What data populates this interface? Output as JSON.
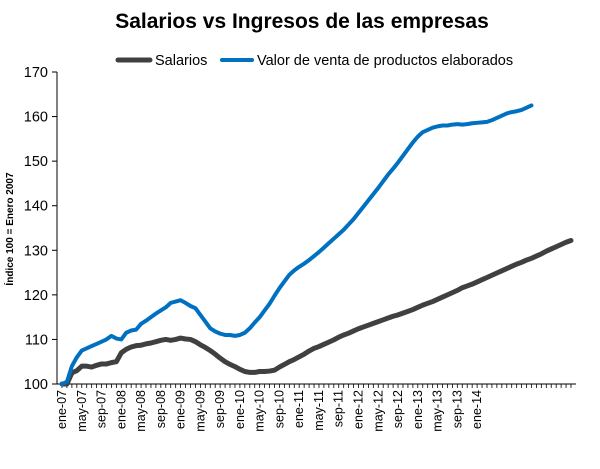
{
  "chart_data": {
    "type": "line",
    "title": "Salarios vs Ingresos de las empresas",
    "ylabel": "Índice 100  = Enero 2007",
    "xlabel": "",
    "ylim": [
      100,
      170
    ],
    "yticks": [
      100,
      110,
      120,
      130,
      140,
      150,
      160,
      170
    ],
    "grid": false,
    "legend_position": "top",
    "xtick_labels": [
      "ene-07",
      "may-07",
      "sep-07",
      "ene-08",
      "may-08",
      "sep-08",
      "ene-09",
      "may-09",
      "sep-09",
      "ene-10",
      "may-10",
      "sep-10",
      "ene-11",
      "may-11",
      "sep-11",
      "ene-12",
      "may-12",
      "sep-12",
      "ene-13",
      "may-13",
      "sep-13",
      "ene-14"
    ],
    "xtick_step_months": 4,
    "series": [
      {
        "name": "Salarios",
        "color": "#404040",
        "values": [
          100,
          100,
          102.5,
          103,
          104,
          104,
          103.8,
          104.2,
          104.5,
          104.5,
          104.8,
          105,
          107,
          107.8,
          108.3,
          108.6,
          108.7,
          109,
          109.2,
          109.5,
          109.8,
          110,
          109.8,
          110,
          110.3,
          110.1,
          110,
          109.5,
          108.8,
          108.2,
          107.5,
          106.7,
          105.8,
          105,
          104.4,
          103.9,
          103.3,
          102.8,
          102.6,
          102.6,
          102.8,
          102.8,
          102.9,
          103.1,
          103.8,
          104.4,
          105,
          105.5,
          106.1,
          106.7,
          107.4,
          108,
          108.4,
          108.9,
          109.4,
          109.9,
          110.5,
          111,
          111.4,
          111.9,
          112.4,
          112.8,
          113.2,
          113.6,
          114,
          114.4,
          114.8,
          115.2,
          115.5,
          115.9,
          116.3,
          116.7,
          117.2,
          117.7,
          118.1,
          118.5,
          119,
          119.5,
          120,
          120.5,
          121,
          121.6,
          122,
          122.4,
          122.9,
          123.4,
          123.9,
          124.4,
          124.9,
          125.4,
          125.9,
          126.4,
          126.9,
          127.3,
          127.8,
          128.2,
          128.7,
          129.2,
          129.8,
          130.3,
          130.8,
          131.3,
          131.8,
          132.2
        ]
      },
      {
        "name": "Valor de venta de productos elaborados",
        "color": "#0070c0",
        "values": [
          100,
          100.5,
          104,
          106,
          107.5,
          108,
          108.5,
          109,
          109.5,
          110,
          110.8,
          110.2,
          110,
          111.5,
          112,
          112.2,
          113.5,
          114.2,
          115,
          115.8,
          116.5,
          117.2,
          118.2,
          118.5,
          118.8,
          118.2,
          117.5,
          117,
          115.5,
          114,
          112.5,
          111.8,
          111.3,
          111,
          111,
          110.8,
          111,
          111.5,
          112.5,
          113.8,
          115,
          116.5,
          118,
          119.8,
          121.5,
          123,
          124.5,
          125.5,
          126.3,
          127,
          127.8,
          128.7,
          129.6,
          130.6,
          131.6,
          132.6,
          133.6,
          134.6,
          135.8,
          137,
          138.4,
          139.8,
          141.2,
          142.6,
          144,
          145.5,
          147,
          148.3,
          149.7,
          151.2,
          152.7,
          154.2,
          155.5,
          156.5,
          157,
          157.5,
          157.8,
          158,
          158,
          158.2,
          158.3,
          158.2,
          158.3,
          158.5,
          158.6,
          158.7,
          158.8,
          159.2,
          159.7,
          160.2,
          160.7,
          161,
          161.2,
          161.5,
          162,
          162.5
        ]
      }
    ]
  }
}
